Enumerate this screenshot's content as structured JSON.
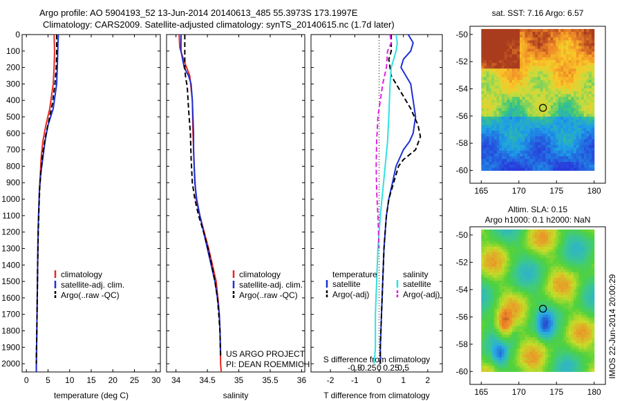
{
  "header": {
    "title1": "Argo profile: AO 5904193_52 13-Jun-2014 20140613_485 55.3973S 173.1997E",
    "title2": "Climatology: CARS2009. Satellite-adjusted climatology: synTS_20140615.nc (1.7d later)"
  },
  "colors": {
    "climatology": "#e8261f",
    "satellite": "#1a2fd6",
    "argo": "#000000",
    "satellite_salinity": "#2ee0e0",
    "argo_salinity_adj": "#e020e0"
  },
  "chart_data": [
    {
      "id": "temperature",
      "type": "line",
      "xlabel": "temperature (deg C)",
      "xlim": [
        -1,
        31
      ],
      "xticks": [
        0,
        5,
        10,
        15,
        20,
        25,
        30
      ],
      "ylim": [
        2050,
        0
      ],
      "yticks": [
        0,
        100,
        200,
        300,
        400,
        500,
        600,
        700,
        800,
        900,
        1000,
        1100,
        1200,
        1300,
        1400,
        1500,
        1600,
        1700,
        1800,
        1900,
        2000
      ],
      "legend": [
        "climatology",
        "satellite-adj. clim.",
        "Argo(..raw -QC)"
      ],
      "series": [
        {
          "name": "climatology",
          "style": "solid",
          "color_key": "climatology",
          "points": [
            [
              6.4,
              0
            ],
            [
              6.5,
              100
            ],
            [
              6.4,
              200
            ],
            [
              6.2,
              300
            ],
            [
              5.4,
              450
            ],
            [
              4.5,
              550
            ],
            [
              3.8,
              650
            ],
            [
              3.4,
              750
            ],
            [
              3.2,
              850
            ],
            [
              3.0,
              950
            ],
            [
              2.8,
              1100
            ],
            [
              2.7,
              1200
            ],
            [
              2.6,
              1400
            ],
            [
              2.5,
              1600
            ],
            [
              2.4,
              1800
            ],
            [
              2.3,
              2000
            ],
            [
              2.3,
              2050
            ]
          ]
        },
        {
          "name": "satellite-adj. clim.",
          "style": "solid",
          "color_key": "satellite",
          "points": [
            [
              7.4,
              0
            ],
            [
              7.3,
              50
            ],
            [
              7.2,
              150
            ],
            [
              7.0,
              300
            ],
            [
              6.2,
              450
            ],
            [
              5.0,
              550
            ],
            [
              4.3,
              650
            ],
            [
              3.8,
              750
            ],
            [
              3.3,
              850
            ],
            [
              3.0,
              950
            ],
            [
              2.8,
              1100
            ],
            [
              2.7,
              1200
            ],
            [
              2.6,
              1400
            ],
            [
              2.5,
              1600
            ],
            [
              2.4,
              1800
            ],
            [
              2.3,
              2000
            ],
            [
              2.3,
              2050
            ]
          ]
        },
        {
          "name": "Argo(..raw -QC)",
          "style": "dash",
          "color_key": "argo",
          "points": [
            [
              7.0,
              0
            ],
            [
              7.0,
              100
            ],
            [
              6.9,
              200
            ],
            [
              6.6,
              300
            ],
            [
              6.0,
              420
            ],
            [
              5.2,
              520
            ],
            [
              4.4,
              620
            ],
            [
              3.8,
              720
            ],
            [
              3.4,
              820
            ],
            [
              3.1,
              920
            ],
            [
              2.9,
              1050
            ],
            [
              2.75,
              1200
            ],
            [
              2.6,
              1400
            ],
            [
              2.5,
              1600
            ],
            [
              2.4,
              1800
            ],
            [
              2.3,
              1950
            ],
            [
              2.3,
              2000
            ]
          ]
        }
      ]
    },
    {
      "id": "salinity",
      "type": "line",
      "xlabel": "salinity",
      "xlim": [
        33.85,
        36.05
      ],
      "xticks": [
        34,
        34.5,
        35,
        35.5,
        36
      ],
      "xticklabels": [
        "34",
        "34.5",
        "35",
        "35.5",
        "36"
      ],
      "ylim": [
        2050,
        0
      ],
      "legend": [
        "climatology",
        "satellite-adj. clim.",
        "Argo(..raw -QC)"
      ],
      "annotation": [
        "US ARGO PROJECT",
        "PI: DEAN ROEMMICH"
      ],
      "series": [
        {
          "name": "climatology",
          "style": "solid",
          "color_key": "climatology",
          "points": [
            [
              34.05,
              0
            ],
            [
              34.06,
              80
            ],
            [
              34.12,
              150
            ],
            [
              34.22,
              250
            ],
            [
              34.26,
              400
            ],
            [
              34.27,
              600
            ],
            [
              34.29,
              800
            ],
            [
              34.32,
              1000
            ],
            [
              34.38,
              1100
            ],
            [
              34.45,
              1200
            ],
            [
              34.52,
              1300
            ],
            [
              34.58,
              1400
            ],
            [
              34.64,
              1500
            ],
            [
              34.68,
              1650
            ],
            [
              34.7,
              1800
            ],
            [
              34.71,
              2000
            ],
            [
              34.72,
              2050
            ]
          ]
        },
        {
          "name": "satellite-adj. clim.",
          "style": "solid",
          "color_key": "satellite",
          "points": [
            [
              34.08,
              0
            ],
            [
              34.08,
              100
            ],
            [
              34.13,
              200
            ],
            [
              34.2,
              250
            ],
            [
              34.24,
              300
            ],
            [
              34.26,
              400
            ],
            [
              34.27,
              500
            ],
            [
              34.28,
              600
            ],
            [
              34.28,
              700
            ],
            [
              34.3,
              900
            ],
            [
              34.33,
              1000
            ],
            [
              34.38,
              1100
            ],
            [
              34.44,
              1200
            ],
            [
              34.5,
              1300
            ],
            [
              34.56,
              1400
            ],
            [
              34.62,
              1500
            ],
            [
              34.66,
              1600
            ],
            [
              34.69,
              1700
            ],
            [
              34.7,
              1800
            ],
            [
              34.71,
              1950
            ]
          ]
        },
        {
          "name": "Argo(..raw -QC)",
          "style": "dash",
          "color_key": "argo",
          "points": [
            [
              34.14,
              0
            ],
            [
              34.14,
              100
            ],
            [
              34.14,
              200
            ],
            [
              34.15,
              250
            ],
            [
              34.18,
              320
            ],
            [
              34.2,
              450
            ],
            [
              34.23,
              600
            ],
            [
              34.24,
              750
            ],
            [
              34.26,
              900
            ],
            [
              34.3,
              1000
            ],
            [
              34.36,
              1100
            ],
            [
              34.44,
              1200
            ],
            [
              34.51,
              1300
            ],
            [
              34.57,
              1400
            ],
            [
              34.62,
              1500
            ],
            [
              34.66,
              1600
            ],
            [
              34.68,
              1700
            ],
            [
              34.7,
              1800
            ],
            [
              34.71,
              1950
            ]
          ]
        }
      ]
    },
    {
      "id": "difference",
      "type": "line",
      "xlabel": "T difference from climatology",
      "xlabel2": "S difference from climatology",
      "xlim": [
        -2.8,
        2.6
      ],
      "xticks": [
        -2,
        -1,
        0,
        1,
        2
      ],
      "xticks2": [
        -0.5,
        -0.25,
        0,
        0.25,
        0.5
      ],
      "xticks2_labels": [
        "-0.5",
        "-0.25",
        "0",
        "0.25",
        "0.5"
      ],
      "ylim": [
        2050,
        0
      ],
      "legend_headers": [
        "temperature",
        "salinity"
      ],
      "legend": [
        "satellite",
        "Argo(-adj)",
        "satellite",
        "Argo(-adj)"
      ],
      "series": [
        {
          "name": "satellite",
          "style": "solid",
          "color_key": "satellite",
          "points": [
            [
              1.2,
              0
            ],
            [
              1.4,
              50
            ],
            [
              1.3,
              100
            ],
            [
              1.0,
              150
            ],
            [
              0.9,
              200
            ],
            [
              1.1,
              250
            ],
            [
              1.3,
              300
            ],
            [
              1.4,
              400
            ],
            [
              1.5,
              500
            ],
            [
              1.45,
              550
            ],
            [
              1.4,
              600
            ],
            [
              1.25,
              650
            ],
            [
              1.0,
              700
            ],
            [
              0.85,
              750
            ],
            [
              0.7,
              800
            ],
            [
              0.55,
              900
            ],
            [
              0.4,
              1000
            ],
            [
              0.3,
              1100
            ],
            [
              0.25,
              1200
            ],
            [
              0.2,
              1300
            ],
            [
              0.15,
              1500
            ],
            [
              0.1,
              1700
            ],
            [
              0.05,
              1900
            ],
            [
              0.05,
              2000
            ]
          ]
        },
        {
          "name": "Argo(-adj)",
          "style": "dash",
          "color_key": "argo",
          "points": [
            [
              0.5,
              0
            ],
            [
              0.5,
              100
            ],
            [
              0.4,
              150
            ],
            [
              0.5,
              250
            ],
            [
              0.9,
              350
            ],
            [
              1.3,
              450
            ],
            [
              1.6,
              550
            ],
            [
              1.7,
              620
            ],
            [
              1.5,
              700
            ],
            [
              1.0,
              760
            ],
            [
              0.8,
              800
            ],
            [
              0.6,
              900
            ],
            [
              0.4,
              1000
            ],
            [
              0.3,
              1100
            ],
            [
              0.25,
              1200
            ],
            [
              0.2,
              1300
            ],
            [
              0.15,
              1500
            ],
            [
              0.1,
              1700
            ],
            [
              0.05,
              1900
            ],
            [
              0.05,
              2000
            ]
          ]
        },
        {
          "name": "satellite",
          "style": "solid",
          "color_key": "satellite_salinity",
          "points": [
            [
              0.7,
              0
            ],
            [
              0.75,
              50
            ],
            [
              0.7,
              100
            ],
            [
              0.5,
              200
            ],
            [
              0.45,
              300
            ],
            [
              0.4,
              500
            ],
            [
              0.35,
              650
            ],
            [
              0.25,
              800
            ],
            [
              0.15,
              950
            ],
            [
              0.05,
              1100
            ],
            [
              -0.05,
              1300
            ],
            [
              -0.1,
              1500
            ],
            [
              -0.15,
              1700
            ],
            [
              -0.15,
              1900
            ],
            [
              -0.2,
              2000
            ]
          ]
        },
        {
          "name": "Argo(-adj)",
          "style": "dash",
          "color_key": "argo_salinity_adj",
          "points": [
            [
              0.45,
              0
            ],
            [
              0.5,
              50
            ],
            [
              0.35,
              100
            ],
            [
              0.3,
              200
            ],
            [
              0.15,
              300
            ],
            [
              0.05,
              400
            ],
            [
              -0.05,
              500
            ],
            [
              -0.1,
              650
            ],
            [
              -0.12,
              800
            ],
            [
              -0.1,
              950
            ],
            [
              -0.05,
              1100
            ],
            [
              0.0,
              1300
            ]
          ]
        }
      ]
    },
    {
      "id": "sst_map",
      "type": "heatmap",
      "title": "sat. SST: 7.16 Argo: 6.57",
      "xticks": [
        165,
        170,
        175,
        180
      ],
      "yticks": [
        -50,
        -52,
        -54,
        -56,
        -58,
        -60
      ],
      "marker": {
        "lon": 173.2,
        "lat": -55.4
      }
    },
    {
      "id": "sla_map",
      "type": "heatmap",
      "title": "Altim. SLA: 0.15",
      "subtitle": "Argo h1000: 0.1 h2000: NaN",
      "xticks": [
        165,
        170,
        175,
        180
      ],
      "yticks": [
        -50,
        -52,
        -54,
        -56,
        -58,
        -60
      ],
      "marker": {
        "lon": 173.2,
        "lat": -55.4
      }
    }
  ],
  "footer": {
    "stamp": "IMOS 22-Jun-2014 20:00:29"
  }
}
